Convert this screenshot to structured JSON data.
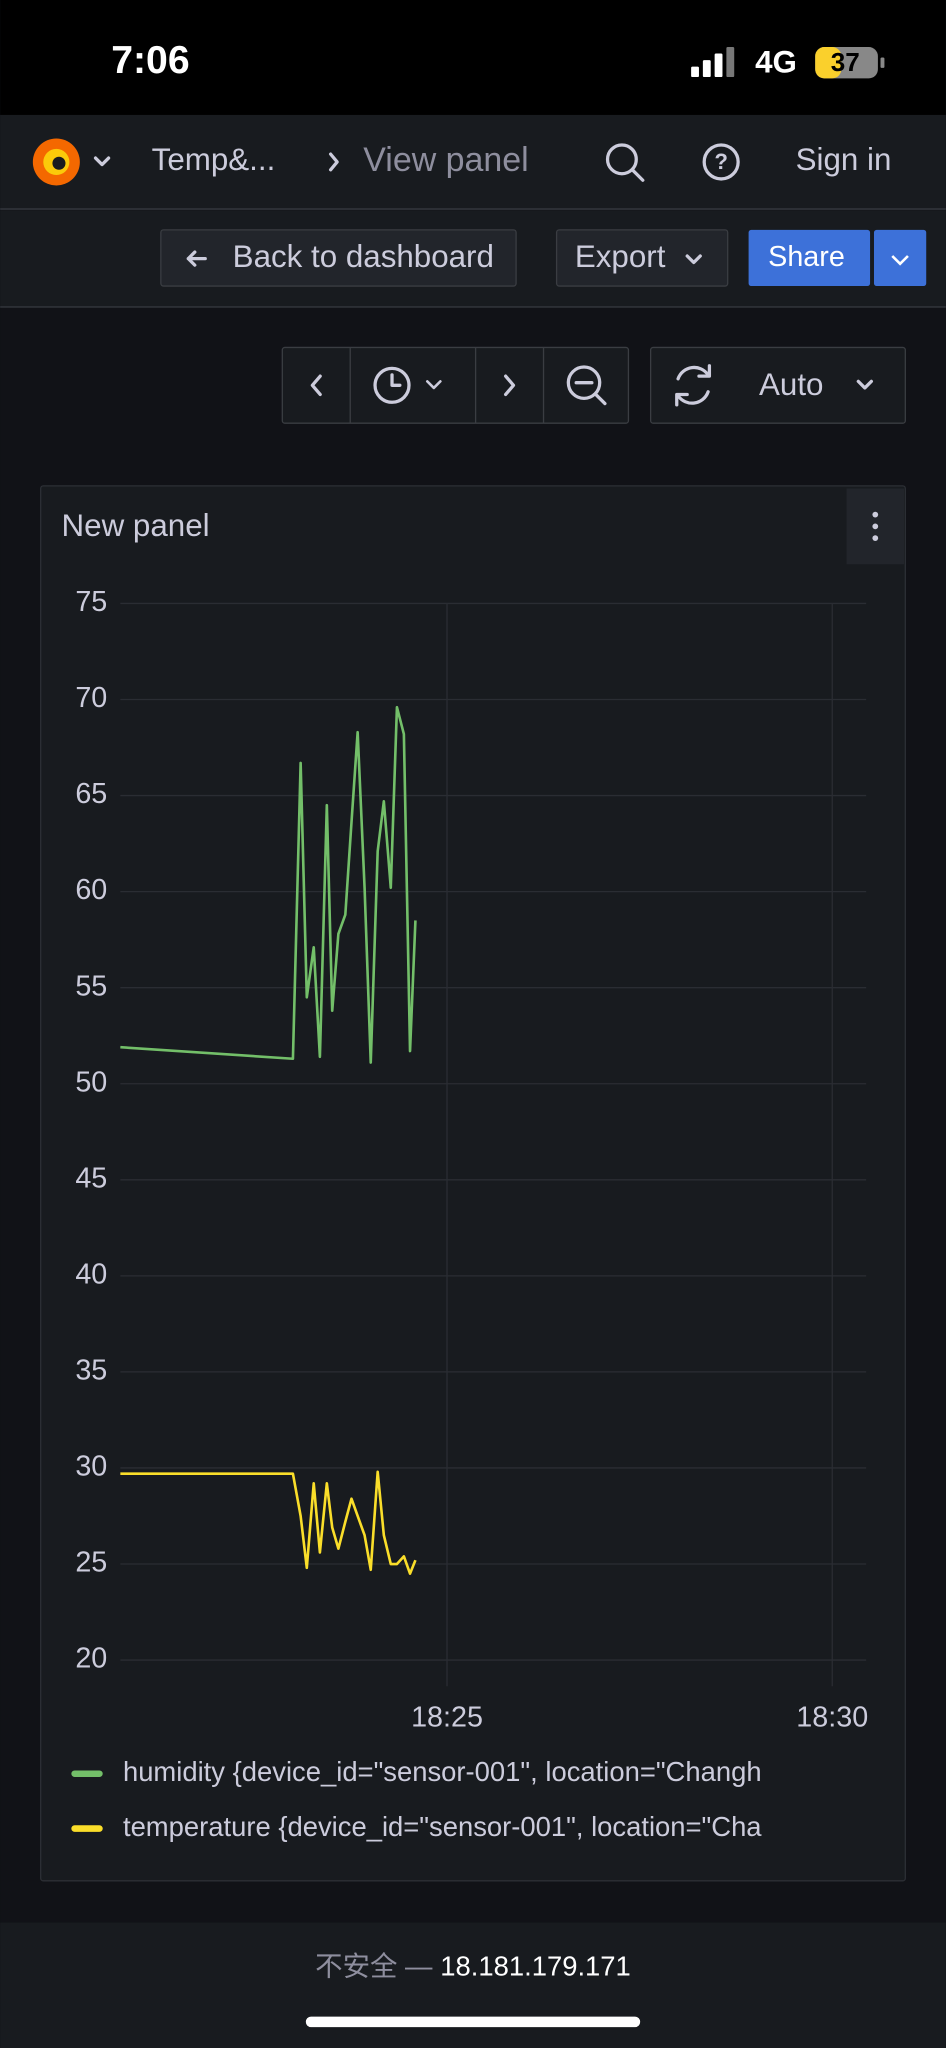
{
  "status_bar": {
    "time": "7:06",
    "network": "4G",
    "battery": "37"
  },
  "nav": {
    "breadcrumb": "Temp&...",
    "current": "View panel",
    "sign_in": "Sign in"
  },
  "toolbar": {
    "back": "Back to dashboard",
    "export": "Export",
    "share": "Share"
  },
  "time_controls": {
    "refresh": "Auto"
  },
  "panel": {
    "title": "New panel"
  },
  "chart_data": {
    "type": "line",
    "x": [
      1100.76,
      1103.0,
      1103.1,
      1103.18,
      1103.27,
      1103.35,
      1103.44,
      1103.51,
      1103.59,
      1103.68,
      1103.76,
      1103.84,
      1103.93,
      1104.01,
      1104.1,
      1104.18,
      1104.27,
      1104.35,
      1104.44,
      1104.52,
      1104.59
    ],
    "xlim": [
      1100.76,
      1110.44
    ],
    "xticks": [
      {
        "value": 1105,
        "label": "18:25"
      },
      {
        "value": 1110,
        "label": "18:30"
      }
    ],
    "ylim": [
      20,
      75
    ],
    "yticks": [
      20,
      25,
      30,
      35,
      40,
      45,
      50,
      55,
      60,
      65,
      70,
      75
    ],
    "grid": true,
    "series": [
      {
        "name": "humidity {device_id=\"sensor-001\", location=\"Changh",
        "color": "#73bf69",
        "values": [
          51.9,
          51.3,
          66.7,
          54.5,
          57.1,
          51.4,
          64.5,
          53.8,
          57.8,
          58.8,
          63.6,
          68.3,
          60.2,
          51.1,
          62.1,
          64.7,
          60.2,
          69.6,
          68.2,
          51.7,
          58.5
        ]
      },
      {
        "name": "temperature {device_id=\"sensor-001\", location=\"Cha",
        "color": "#fade2a",
        "values": [
          29.7,
          29.7,
          27.5,
          24.8,
          29.2,
          25.6,
          29.2,
          26.9,
          25.8,
          27.2,
          28.4,
          27.5,
          26.5,
          24.7,
          29.8,
          26.5,
          25.0,
          25.0,
          25.4,
          24.5,
          25.2
        ]
      }
    ]
  },
  "footer": {
    "security": "不安全 —",
    "address": "18.181.179.171"
  }
}
